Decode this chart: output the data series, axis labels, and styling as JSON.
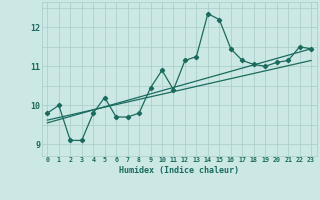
{
  "xlabel": "Humidex (Indice chaleur)",
  "ylabel": "",
  "background_color": "#cce8e5",
  "grid_color": "#a8ccc9",
  "line_color": "#1a6b5e",
  "xlim": [
    -0.5,
    23.5
  ],
  "ylim": [
    8.7,
    12.65
  ],
  "x_data": [
    0,
    1,
    2,
    3,
    4,
    5,
    6,
    7,
    8,
    9,
    10,
    11,
    12,
    13,
    14,
    15,
    16,
    17,
    18,
    19,
    20,
    21,
    22,
    23
  ],
  "y_data": [
    9.8,
    10.0,
    9.1,
    9.1,
    9.8,
    10.2,
    9.7,
    9.7,
    9.8,
    10.45,
    10.9,
    10.4,
    11.15,
    11.25,
    12.35,
    12.2,
    11.45,
    11.15,
    11.05,
    11.0,
    11.1,
    11.15,
    11.5,
    11.45
  ],
  "trend1_x": [
    0,
    23
  ],
  "trend1_y": [
    9.62,
    11.15
  ],
  "trend2_x": [
    0,
    23
  ],
  "trend2_y": [
    9.55,
    11.45
  ],
  "xtick_labels": [
    "0",
    "1",
    "2",
    "3",
    "4",
    "5",
    "6",
    "7",
    "8",
    "9",
    "10",
    "11",
    "12",
    "13",
    "14",
    "15",
    "16",
    "17",
    "18",
    "19",
    "20",
    "21",
    "22",
    "23"
  ],
  "ytick_values": [
    9,
    10,
    11,
    12
  ],
  "font_color": "#1a6b5e"
}
